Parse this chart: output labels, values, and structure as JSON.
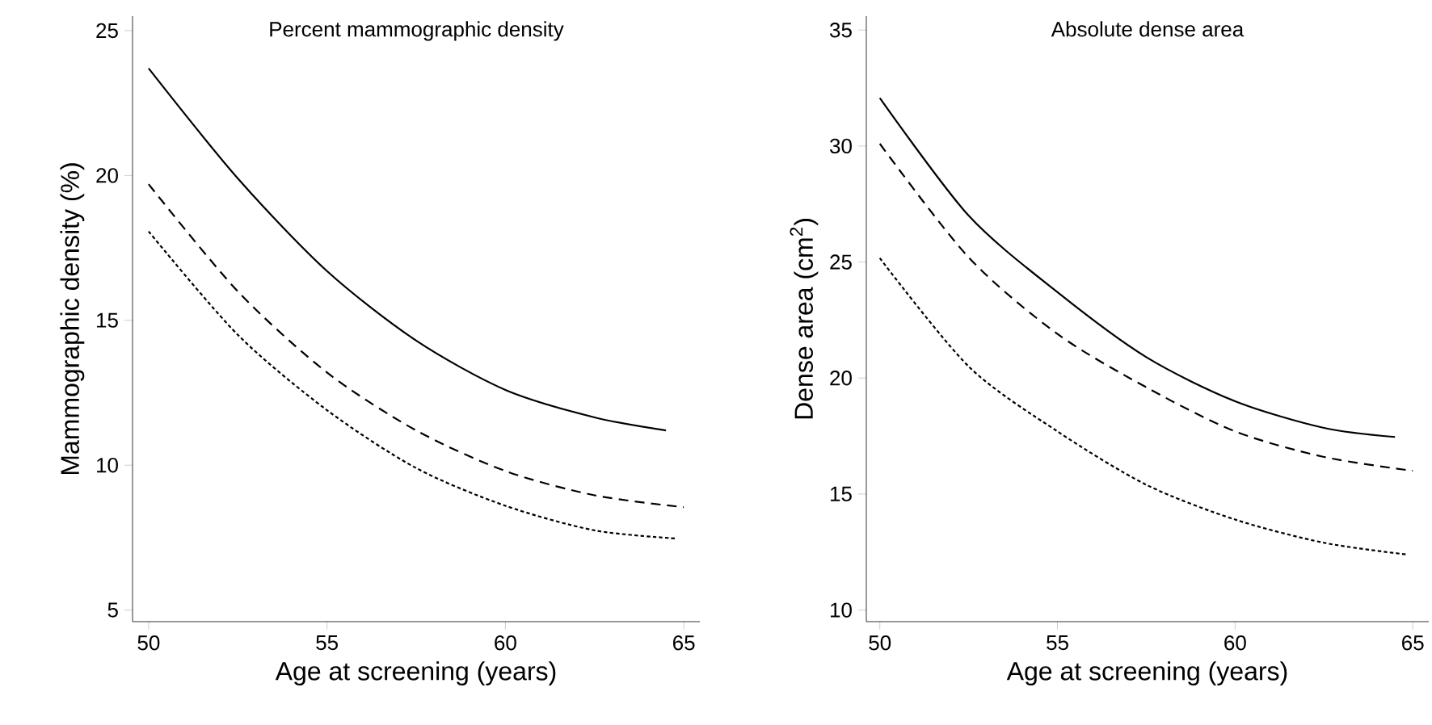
{
  "chart_data": [
    {
      "type": "line",
      "title": "Percent mammographic density",
      "xlabel": "Age at screening (years)",
      "ylabel": "Mammographic density (%)",
      "xlim": [
        49.55,
        65.45
      ],
      "ylim": [
        4.6,
        25.5
      ],
      "xticks": [
        50,
        55,
        60,
        65
      ],
      "yticks": [
        5,
        10,
        15,
        20,
        25
      ],
      "series": [
        {
          "color": "#000000",
          "line_style": "solid",
          "x": [
            50,
            52.5,
            55,
            57.5,
            60,
            62.5,
            64.5
          ],
          "values": [
            23.7,
            19.9,
            16.7,
            14.3,
            12.6,
            11.65,
            11.2
          ]
        },
        {
          "color": "#000000",
          "line_style": "dashed",
          "x": [
            50,
            52.5,
            55,
            57.5,
            60,
            62.5,
            65
          ],
          "values": [
            19.7,
            16.0,
            13.2,
            11.2,
            9.8,
            8.96,
            8.55
          ]
        },
        {
          "color": "#000000",
          "line_style": "dotted",
          "x": [
            50,
            52.5,
            55,
            57.5,
            60,
            62.5,
            64.8
          ],
          "values": [
            18.07,
            14.5,
            11.9,
            9.9,
            8.6,
            7.75,
            7.47
          ]
        }
      ]
    },
    {
      "type": "line",
      "title": "Absolute dense area",
      "xlabel": "Age at screening (years)",
      "ylabel": "Dense area (cm$^{2}$)",
      "xlim": [
        49.62,
        65.45
      ],
      "ylim": [
        9.5,
        35.6
      ],
      "xticks": [
        50,
        55,
        60,
        65
      ],
      "yticks": [
        10,
        15,
        20,
        25,
        30,
        35
      ],
      "series": [
        {
          "color": "#000000",
          "line_style": "solid",
          "x": [
            50,
            52.5,
            55,
            57.5,
            60,
            62.5,
            64.5
          ],
          "values": [
            32.07,
            27.0,
            23.7,
            20.9,
            19.0,
            17.85,
            17.46
          ]
        },
        {
          "color": "#000000",
          "line_style": "dashed",
          "x": [
            50,
            52.5,
            55,
            57.5,
            60,
            62.5,
            65
          ],
          "values": [
            30.1,
            25.2,
            21.9,
            19.6,
            17.7,
            16.6,
            16.0
          ]
        },
        {
          "color": "#000000",
          "line_style": "dotted",
          "x": [
            50,
            52.5,
            55,
            57.5,
            60,
            62.5,
            64.8
          ],
          "values": [
            25.17,
            20.5,
            17.7,
            15.4,
            13.9,
            12.9,
            12.4
          ]
        }
      ]
    }
  ]
}
